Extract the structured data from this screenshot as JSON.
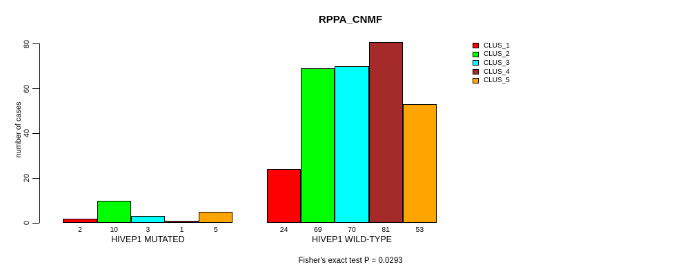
{
  "title": "RPPA_CNMF",
  "y_axis": {
    "label": "number of cases",
    "tick_labels": [
      "0",
      "20",
      "40",
      "60",
      "80"
    ]
  },
  "footer": "Fisher's exact test P = 0.0293",
  "legend": {
    "items": [
      {
        "label": "CLUS_1",
        "color": "#ff0000"
      },
      {
        "label": "CLUS_2",
        "color": "#00ff00"
      },
      {
        "label": "CLUS_3",
        "color": "#00ffff"
      },
      {
        "label": "CLUS_4",
        "color": "#a52a2a"
      },
      {
        "label": "CLUS_5",
        "color": "#ffa500"
      }
    ]
  },
  "chart_data": {
    "type": "bar",
    "title": "RPPA_CNMF",
    "xlabel": "",
    "ylabel": "number of cases",
    "ylim": [
      0,
      80
    ],
    "yticks": [
      0,
      20,
      40,
      60,
      80
    ],
    "grid": false,
    "legend_position": "right-outside",
    "categories": [
      "HIVEP1 MUTATED",
      "HIVEP1 WILD-TYPE"
    ],
    "series": [
      {
        "name": "CLUS_1",
        "color": "#ff0000",
        "values": [
          2,
          24
        ]
      },
      {
        "name": "CLUS_2",
        "color": "#00ff00",
        "values": [
          10,
          69
        ]
      },
      {
        "name": "CLUS_3",
        "color": "#00ffff",
        "values": [
          3,
          70
        ]
      },
      {
        "name": "CLUS_4",
        "color": "#a52a2a",
        "values": [
          1,
          81
        ]
      },
      {
        "name": "CLUS_5",
        "color": "#ffa500",
        "values": [
          5,
          53
        ]
      }
    ],
    "bar_value_labels_shown": true,
    "annotation": "Fisher's exact test P = 0.0293"
  }
}
